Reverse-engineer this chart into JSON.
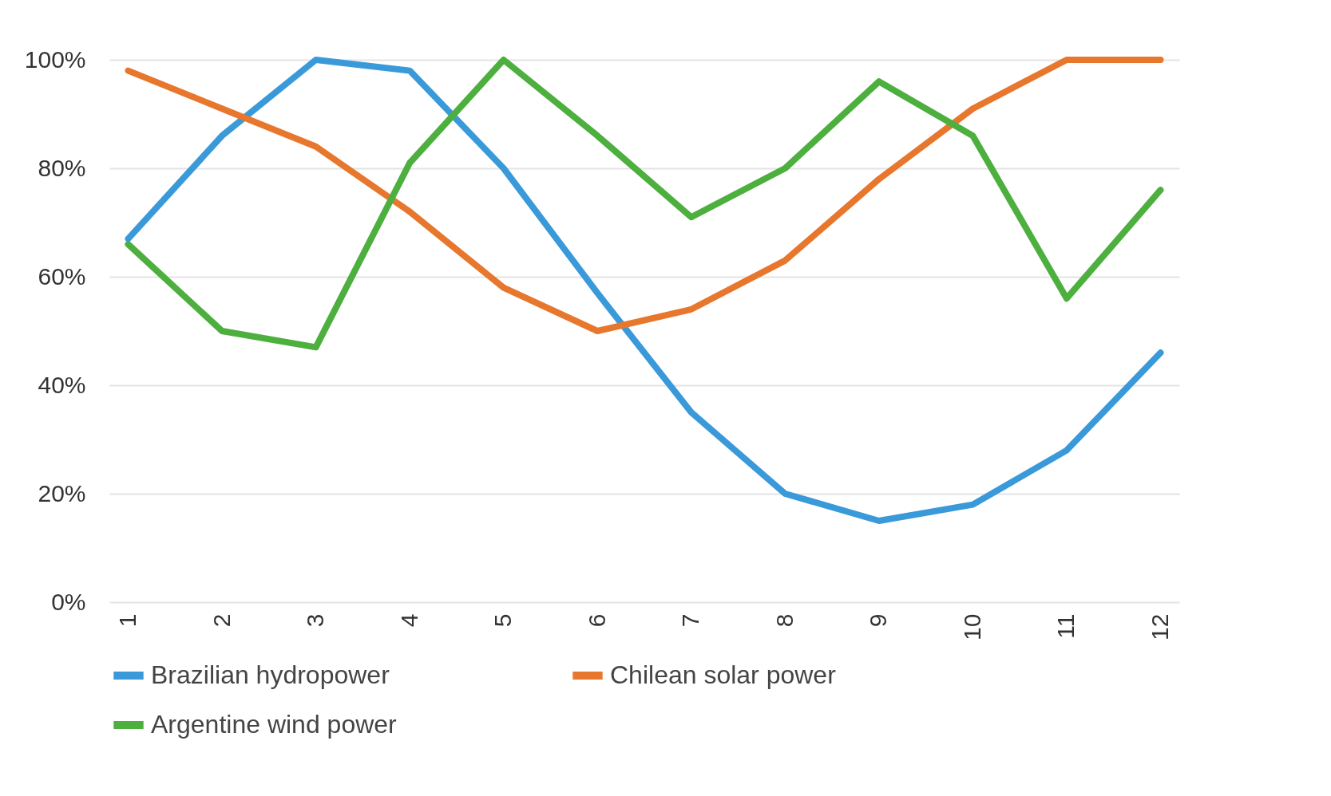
{
  "chart_data": {
    "type": "line",
    "categories": [
      "1",
      "2",
      "3",
      "4",
      "5",
      "6",
      "7",
      "8",
      "9",
      "10",
      "11",
      "12"
    ],
    "series": [
      {
        "name": "Brazilian hydropower",
        "color": "#3a9ad9",
        "values": [
          67,
          86,
          100,
          98,
          80,
          57,
          35,
          20,
          15,
          18,
          28,
          46
        ]
      },
      {
        "name": "Chilean solar power",
        "color": "#e8772e",
        "values": [
          98,
          91,
          84,
          72,
          58,
          50,
          54,
          63,
          78,
          91,
          100,
          100
        ]
      },
      {
        "name": "Argentine wind power",
        "color": "#4caf3e",
        "values": [
          66,
          50,
          47,
          81,
          100,
          86,
          71,
          80,
          96,
          86,
          56,
          76
        ]
      }
    ],
    "ylim": [
      0,
      100
    ],
    "yticks": [
      {
        "value": 0,
        "label": "0%"
      },
      {
        "value": 20,
        "label": "20%"
      },
      {
        "value": 40,
        "label": "40%"
      },
      {
        "value": 60,
        "label": "60%"
      },
      {
        "value": 80,
        "label": "80%"
      },
      {
        "value": 100,
        "label": "100%"
      }
    ],
    "grid": "y",
    "legend": "bottom",
    "marker": "none",
    "line_style": "solid"
  }
}
